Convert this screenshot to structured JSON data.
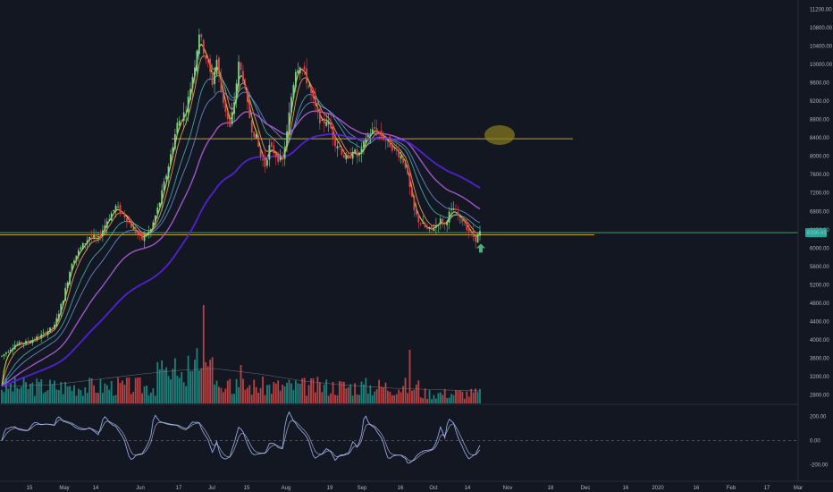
{
  "chart_data": {
    "type": "candlestick",
    "price_axis": {
      "range": [
        2600,
        11400
      ],
      "ticks": [
        "11200.00",
        "10800.00",
        "10400.00",
        "10000.00",
        "9600.00",
        "9200.00",
        "8800.00",
        "8400.00",
        "8000.00",
        "7600.00",
        "7200.00",
        "6800.00",
        "6400.00",
        "6000.00",
        "5600.00",
        "5200.00",
        "4800.00",
        "4400.00",
        "4000.00",
        "3600.00",
        "3200.00",
        "2800.00"
      ],
      "last_price_label": "6336.41",
      "last_price": 6336.41
    },
    "oscillator_axis": {
      "range": [
        -280,
        280
      ],
      "ticks": [
        "200.00",
        "0.00",
        "-200.00"
      ]
    },
    "date_axis": {
      "labels": [
        "15",
        "May",
        "14",
        "Jun",
        "17",
        "Jul",
        "15",
        "Aug",
        "19",
        "Sep",
        "16",
        "Oct",
        "14",
        "Nov",
        "18",
        "Dec",
        "16",
        "2020",
        "16",
        "Feb",
        "17",
        "Mar"
      ]
    },
    "horizontal_lines": [
      {
        "name": "resistance",
        "price": 8380,
        "color": "#c8a02a"
      },
      {
        "name": "support",
        "price": 6290,
        "color": "#c8a02a"
      },
      {
        "name": "last-price-line",
        "price": 6336.41,
        "color": "#4caf74"
      }
    ],
    "colors": {
      "background": "#131722",
      "up_candle": "#7ed08a",
      "down_candle": "#e0434b",
      "ema_fast": "#e8e23b",
      "ema_mid": "#f4a261",
      "ma_teal": "#4fc3c7",
      "ma_blue": "#6f8fd8",
      "ma_violet": "#b05cdc",
      "ma_long": "#5b21e6",
      "volume_up": "#26a69a",
      "volume_down": "#ef5350",
      "oscillator": "#8fa7e8",
      "arrow": "#4caf74",
      "highlight_ellipse": "#8a7d1c"
    },
    "annotations": [
      {
        "type": "ellipse-highlight",
        "price": 8460
      },
      {
        "type": "up-arrow",
        "price": 5980
      }
    ],
    "ohlc_daily_approx": [
      {
        "d": 0,
        "c": 3650
      },
      {
        "d": 6,
        "c": 3900
      },
      {
        "d": 12,
        "c": 3960
      },
      {
        "d": 18,
        "c": 4100
      },
      {
        "d": 24,
        "c": 4300
      },
      {
        "d": 28,
        "c": 4900
      },
      {
        "d": 32,
        "c": 5700
      },
      {
        "d": 36,
        "c": 6000
      },
      {
        "d": 40,
        "c": 6250
      },
      {
        "d": 44,
        "c": 6200
      },
      {
        "d": 48,
        "c": 6600
      },
      {
        "d": 52,
        "c": 6900
      },
      {
        "d": 56,
        "c": 6700
      },
      {
        "d": 60,
        "c": 6400
      },
      {
        "d": 64,
        "c": 6200
      },
      {
        "d": 68,
        "c": 6400
      },
      {
        "d": 72,
        "c": 7000
      },
      {
        "d": 76,
        "c": 7800
      },
      {
        "d": 80,
        "c": 8700
      },
      {
        "d": 84,
        "c": 9000
      },
      {
        "d": 88,
        "c": 10000
      },
      {
        "d": 90,
        "c": 10700
      },
      {
        "d": 92,
        "c": 10300
      },
      {
        "d": 94,
        "c": 10000
      },
      {
        "d": 96,
        "c": 9600
      },
      {
        "d": 98,
        "c": 10100
      },
      {
        "d": 100,
        "c": 9400
      },
      {
        "d": 102,
        "c": 9000
      },
      {
        "d": 104,
        "c": 8600
      },
      {
        "d": 106,
        "c": 9200
      },
      {
        "d": 108,
        "c": 10000
      },
      {
        "d": 110,
        "c": 9700
      },
      {
        "d": 112,
        "c": 9100
      },
      {
        "d": 114,
        "c": 8600
      },
      {
        "d": 116,
        "c": 8400
      },
      {
        "d": 118,
        "c": 8000
      },
      {
        "d": 120,
        "c": 7800
      },
      {
        "d": 122,
        "c": 8200
      },
      {
        "d": 124,
        "c": 8100
      },
      {
        "d": 126,
        "c": 7950
      },
      {
        "d": 128,
        "c": 7900
      },
      {
        "d": 130,
        "c": 8500
      },
      {
        "d": 132,
        "c": 9300
      },
      {
        "d": 134,
        "c": 9900
      },
      {
        "d": 136,
        "c": 10000
      },
      {
        "d": 138,
        "c": 9800
      },
      {
        "d": 140,
        "c": 9500
      },
      {
        "d": 142,
        "c": 9200
      },
      {
        "d": 144,
        "c": 8900
      },
      {
        "d": 146,
        "c": 8700
      },
      {
        "d": 148,
        "c": 8800
      },
      {
        "d": 150,
        "c": 8600
      },
      {
        "d": 152,
        "c": 8300
      },
      {
        "d": 154,
        "c": 8200
      },
      {
        "d": 156,
        "c": 8000
      },
      {
        "d": 158,
        "c": 7900
      },
      {
        "d": 160,
        "c": 8150
      },
      {
        "d": 162,
        "c": 8000
      },
      {
        "d": 164,
        "c": 8100
      },
      {
        "d": 166,
        "c": 8400
      },
      {
        "d": 168,
        "c": 8500
      },
      {
        "d": 170,
        "c": 8600
      },
      {
        "d": 172,
        "c": 8500
      },
      {
        "d": 174,
        "c": 8400
      },
      {
        "d": 176,
        "c": 8300
      },
      {
        "d": 178,
        "c": 8200
      },
      {
        "d": 180,
        "c": 8100
      },
      {
        "d": 182,
        "c": 8000
      },
      {
        "d": 184,
        "c": 7800
      },
      {
        "d": 186,
        "c": 7300
      },
      {
        "d": 188,
        "c": 6800
      },
      {
        "d": 190,
        "c": 6600
      },
      {
        "d": 192,
        "c": 6500
      },
      {
        "d": 194,
        "c": 6400
      },
      {
        "d": 196,
        "c": 6400
      },
      {
        "d": 198,
        "c": 6500
      },
      {
        "d": 200,
        "c": 6600
      },
      {
        "d": 202,
        "c": 6500
      },
      {
        "d": 204,
        "c": 6750
      },
      {
        "d": 206,
        "c": 6850
      },
      {
        "d": 208,
        "c": 6700
      },
      {
        "d": 210,
        "c": 6600
      },
      {
        "d": 212,
        "c": 6450
      },
      {
        "d": 214,
        "c": 6300
      },
      {
        "d": 216,
        "c": 6200
      },
      {
        "d": 218,
        "c": 6336
      }
    ]
  }
}
